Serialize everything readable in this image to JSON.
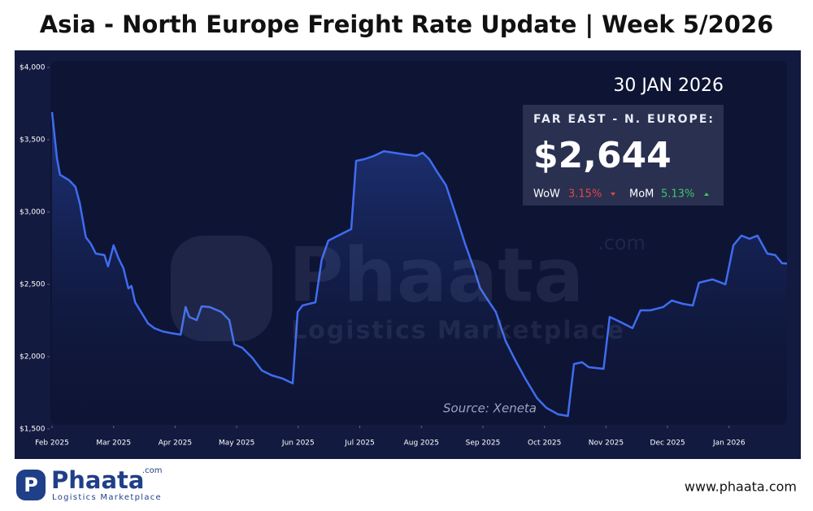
{
  "title": "Asia - North Europe Freight Rate Update | Week 5/2026",
  "chart_data": {
    "type": "line",
    "color": "#3f6cf0",
    "x": [
      0,
      0.08,
      0.13,
      0.28,
      0.38,
      0.45,
      0.55,
      0.63,
      0.71,
      0.85,
      0.91,
      1.0,
      1.08,
      1.16,
      1.24,
      1.29,
      1.35,
      1.43,
      1.56,
      1.66,
      1.8,
      1.93,
      2.09,
      2.17,
      2.23,
      2.35,
      2.43,
      2.56,
      2.75,
      2.88,
      2.96,
      3.09,
      3.25,
      3.41,
      3.57,
      3.75,
      3.91,
      3.99,
      4.07,
      4.28,
      4.38,
      4.49,
      4.7,
      4.86,
      4.94,
      5.07,
      5.23,
      5.39,
      5.55,
      5.73,
      5.92,
      6.02,
      6.13,
      6.26,
      6.4,
      6.55,
      6.71,
      6.87,
      6.95,
      7.05,
      7.21,
      7.37,
      7.53,
      7.69,
      7.88,
      8.03,
      8.22,
      8.38,
      8.48,
      8.61,
      8.72,
      8.96,
      9.06,
      9.22,
      9.43,
      9.56,
      9.72,
      9.93,
      10.07,
      10.25,
      10.41,
      10.51,
      10.73,
      10.94,
      11.07,
      11.2,
      11.33,
      11.46,
      11.62,
      11.75,
      11.86,
      11.94
    ],
    "values": [
      3691,
      3371,
      3258,
      3219,
      3174,
      3062,
      2826,
      2781,
      2713,
      2702,
      2624,
      2770,
      2680,
      2612,
      2472,
      2489,
      2376,
      2320,
      2230,
      2197,
      2174,
      2163,
      2152,
      2343,
      2275,
      2253,
      2348,
      2343,
      2309,
      2253,
      2084,
      2062,
      1994,
      1904,
      1871,
      1848,
      1815,
      2309,
      2354,
      2376,
      2669,
      2803,
      2848,
      2882,
      3354,
      3365,
      3388,
      3421,
      3410,
      3399,
      3388,
      3410,
      3365,
      3275,
      3185,
      2994,
      2781,
      2590,
      2478,
      2410,
      2309,
      2107,
      1972,
      1848,
      1713,
      1646,
      1601,
      1590,
      1949,
      1961,
      1927,
      1916,
      2275,
      2242,
      2197,
      2320,
      2320,
      2343,
      2388,
      2365,
      2354,
      2511,
      2534,
      2500,
      2770,
      2837,
      2815,
      2837,
      2713,
      2702,
      2646,
      2644
    ],
    "xlim": [
      0,
      11.94
    ],
    "xticks": [
      {
        "value": 0,
        "label": "Feb 2025"
      },
      {
        "value": 1,
        "label": "Mar 2025"
      },
      {
        "value": 2,
        "label": "Apr 2025"
      },
      {
        "value": 3,
        "label": "May 2025"
      },
      {
        "value": 4,
        "label": "Jun 2025"
      },
      {
        "value": 5,
        "label": "Jul 2025"
      },
      {
        "value": 6,
        "label": "Aug 2025"
      },
      {
        "value": 7,
        "label": "Sep 2025"
      },
      {
        "value": 8,
        "label": "Oct 2025"
      },
      {
        "value": 9,
        "label": "Nov 2025"
      },
      {
        "value": 10,
        "label": "Dec 2025"
      },
      {
        "value": 11,
        "label": "Jan 2026"
      }
    ],
    "ylim": [
      1500,
      4000
    ],
    "yticks": [
      {
        "value": 1500,
        "label": "$1,500"
      },
      {
        "value": 2000,
        "label": "$2,000"
      },
      {
        "value": 2500,
        "label": "$2,500"
      },
      {
        "value": 3000,
        "label": "$3,000"
      },
      {
        "value": 3500,
        "label": "$3,500"
      },
      {
        "value": 4000,
        "label": "$4,000"
      }
    ],
    "source": "Source: Xeneta"
  },
  "card": {
    "date": "30 JAN 2026",
    "route": "FAR EAST - N. EUROPE:",
    "price": "$2,644",
    "wow_label": "WoW",
    "wow_value": "3.15%",
    "mom_label": "MoM",
    "mom_value": "5.13%"
  },
  "watermark": {
    "brand": "Phaata",
    "domain": ".com",
    "tagline": "Logistics Marketplace"
  },
  "footer": {
    "brand": "Phaata",
    "domain": ".com",
    "tagline": "Logistics Marketplace",
    "url": "www.phaata.com"
  }
}
